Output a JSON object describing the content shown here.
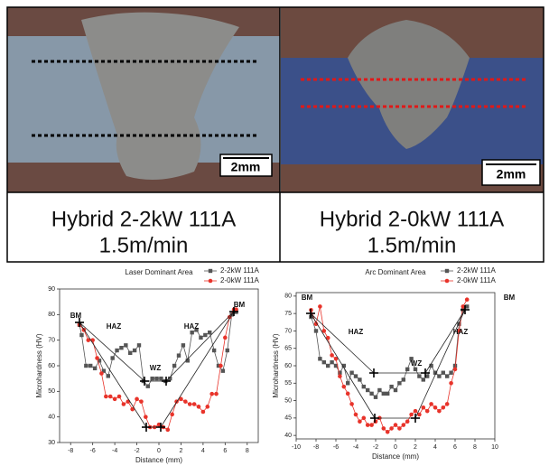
{
  "panels": [
    {
      "scale_bar": "2mm",
      "caption": [
        "Hybrid 2-2kW 111A",
        "1.5m/min"
      ]
    },
    {
      "scale_bar": "2mm",
      "caption": [
        "Hybrid 2-0kW 111A",
        "1.5m/min"
      ]
    }
  ],
  "chart_data": [
    {
      "type": "line",
      "title": "Laser Dominant Area",
      "x_label": "Distance (mm)",
      "y_label": "Microhardness (HV)",
      "xlim": [
        -9,
        9
      ],
      "xticks": [
        -8,
        -6,
        -4,
        -2,
        0,
        2,
        4,
        6,
        8
      ],
      "ylim": [
        30,
        90
      ],
      "yticks": [
        30,
        40,
        50,
        60,
        70,
        80,
        90
      ],
      "legend": "upper right",
      "annotations": [
        "BM",
        "HAZ",
        "WZ",
        "HAZ",
        "BM"
      ],
      "series": [
        {
          "name": "2-2kW 111A",
          "color": "#555555",
          "marker": "square",
          "x": [
            -7.2,
            -7,
            -6.6,
            -6.2,
            -5.8,
            -5.4,
            -5,
            -4.6,
            -4.2,
            -3.8,
            -3.4,
            -3,
            -2.6,
            -2.2,
            -1.8,
            -1.4,
            -1,
            -0.6,
            -0.2,
            0.2,
            0.6,
            1,
            1.4,
            1.8,
            2.2,
            2.6,
            3,
            3.4,
            3.8,
            4.2,
            4.6,
            5,
            5.4,
            5.8,
            6.2,
            6.6,
            7
          ],
          "values": [
            76,
            72,
            60,
            60,
            59,
            62,
            58,
            56,
            63,
            66,
            67,
            68,
            65,
            66,
            68,
            54,
            52,
            55,
            55,
            55,
            54,
            55,
            60,
            64,
            68,
            62,
            73,
            74,
            71,
            72,
            73,
            66,
            60,
            58,
            66,
            80,
            81
          ]
        },
        {
          "name": "2-0kW 111A",
          "color": "#e8332a",
          "marker": "circle",
          "x": [
            -7.2,
            -6.8,
            -6.4,
            -6,
            -5.6,
            -5.2,
            -4.8,
            -4.4,
            -4,
            -3.6,
            -3.2,
            -2.8,
            -2.4,
            -2,
            -1.6,
            -1.2,
            -0.8,
            -0.4,
            0,
            0.4,
            0.8,
            1.2,
            1.6,
            2,
            2.4,
            2.8,
            3.2,
            3.6,
            4,
            4.4,
            4.8,
            5.2,
            5.6,
            6,
            6.4,
            6.8,
            7
          ],
          "values": [
            76,
            74,
            70,
            70,
            63,
            57,
            48,
            48,
            47,
            48,
            45,
            46,
            43,
            47,
            46,
            40,
            36,
            36,
            37,
            36,
            35,
            41,
            46,
            47,
            46,
            45,
            45,
            44,
            42,
            44,
            49,
            49,
            60,
            71,
            79,
            82,
            82
          ]
        }
      ]
    },
    {
      "type": "line",
      "title": "Arc Dominant Area",
      "x_label": "Distance (mm)",
      "y_label": "Microhardness (HV)",
      "xlim": [
        -10,
        10
      ],
      "xticks": [
        -10,
        -8,
        -6,
        -4,
        -2,
        0,
        2,
        4,
        6,
        8,
        10
      ],
      "ylim": [
        39,
        81
      ],
      "yticks": [
        40,
        45,
        50,
        55,
        60,
        65,
        70,
        75,
        80
      ],
      "legend": "upper right",
      "annotations": [
        "BM",
        "HAZ",
        "WZ",
        "HAZ",
        "BM"
      ],
      "series": [
        {
          "name": "2-2kW 111A",
          "color": "#555555",
          "marker": "square",
          "x": [
            -8.5,
            -8,
            -7.6,
            -7.2,
            -6.8,
            -6.4,
            -6,
            -5.6,
            -5.2,
            -4.8,
            -4.4,
            -4,
            -3.6,
            -3.2,
            -2.8,
            -2.4,
            -2,
            -1.6,
            -1.2,
            -0.8,
            -0.4,
            0,
            0.4,
            0.8,
            1.2,
            1.6,
            2,
            2.4,
            2.8,
            3.2,
            3.6,
            4,
            4.4,
            4.8,
            5.2,
            5.6,
            6,
            6.4,
            6.8,
            7.2
          ],
          "values": [
            74,
            70,
            62,
            61,
            60,
            61,
            60,
            58,
            60,
            55,
            58,
            57,
            56,
            54,
            53,
            52,
            51,
            53,
            52,
            52,
            54,
            53,
            55,
            56,
            59,
            62,
            59,
            57,
            56,
            57,
            60,
            58,
            57,
            58,
            57,
            58,
            60,
            72,
            76,
            77
          ]
        },
        {
          "name": "2-0kW 111A",
          "color": "#e8332a",
          "marker": "circle",
          "x": [
            -8.5,
            -8,
            -7.6,
            -7.2,
            -6.8,
            -6.4,
            -6,
            -5.6,
            -5.2,
            -4.8,
            -4.4,
            -4,
            -3.6,
            -3.2,
            -2.8,
            -2.4,
            -2,
            -1.6,
            -1.2,
            -0.8,
            -0.4,
            0,
            0.4,
            0.8,
            1.2,
            1.6,
            2,
            2.4,
            2.8,
            3.2,
            3.6,
            4,
            4.4,
            4.8,
            5.2,
            5.6,
            6,
            6.4,
            6.8,
            7.2
          ],
          "values": [
            76,
            72,
            77,
            70,
            68,
            63,
            62,
            57,
            54,
            52,
            49,
            46,
            44,
            45,
            43,
            43,
            44,
            45,
            42,
            41,
            42,
            43,
            42,
            43,
            44,
            46,
            47,
            46,
            48,
            47,
            49,
            48,
            47,
            48,
            49,
            55,
            59,
            70,
            77,
            79
          ]
        }
      ]
    }
  ]
}
